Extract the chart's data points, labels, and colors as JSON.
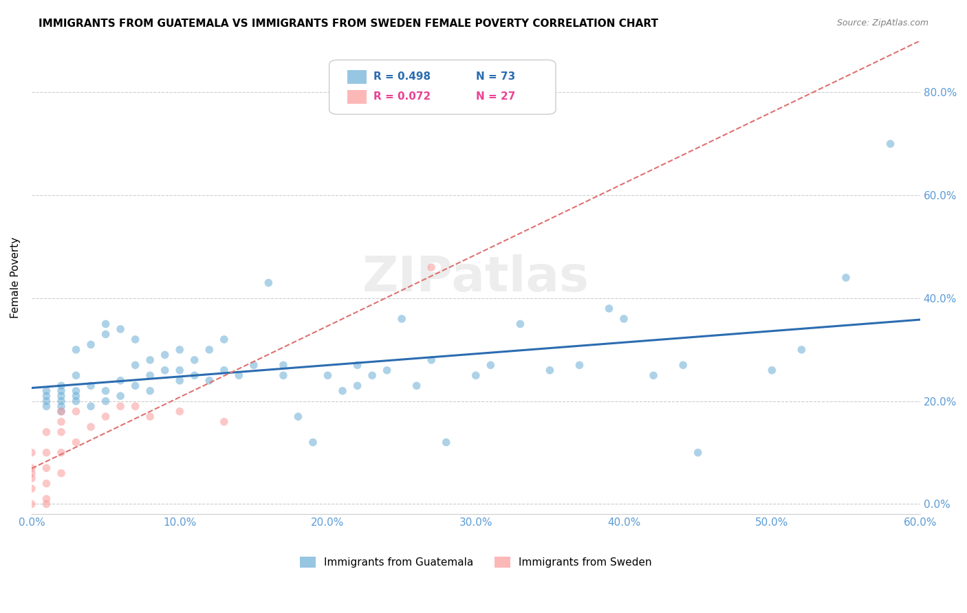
{
  "title": "IMMIGRANTS FROM GUATEMALA VS IMMIGRANTS FROM SWEDEN FEMALE POVERTY CORRELATION CHART",
  "source": "Source: ZipAtlas.com",
  "xlabel_ticks": [
    "0.0%",
    "10.0%",
    "20.0%",
    "30.0%",
    "40.0%",
    "50.0%",
    "60.0%"
  ],
  "ylabel_ticks": [
    "0.0%",
    "20.0%",
    "40.0%",
    "60.0%",
    "80.0%"
  ],
  "ylabel_label": "Female Poverty",
  "xlim": [
    0.0,
    0.6
  ],
  "ylim": [
    -0.02,
    0.9
  ],
  "guatemala_color": "#6baed6",
  "sweden_color": "#fb9a99",
  "watermark": "ZIPatlas",
  "guatemala_x": [
    0.01,
    0.01,
    0.01,
    0.01,
    0.02,
    0.02,
    0.02,
    0.02,
    0.02,
    0.02,
    0.03,
    0.03,
    0.03,
    0.03,
    0.03,
    0.04,
    0.04,
    0.04,
    0.05,
    0.05,
    0.05,
    0.05,
    0.06,
    0.06,
    0.06,
    0.07,
    0.07,
    0.07,
    0.08,
    0.08,
    0.08,
    0.09,
    0.09,
    0.1,
    0.1,
    0.1,
    0.11,
    0.11,
    0.12,
    0.12,
    0.13,
    0.13,
    0.14,
    0.15,
    0.16,
    0.17,
    0.17,
    0.18,
    0.19,
    0.2,
    0.21,
    0.22,
    0.22,
    0.23,
    0.24,
    0.25,
    0.26,
    0.27,
    0.28,
    0.3,
    0.31,
    0.33,
    0.35,
    0.37,
    0.39,
    0.4,
    0.42,
    0.44,
    0.45,
    0.5,
    0.52,
    0.55,
    0.58
  ],
  "guatemala_y": [
    0.19,
    0.2,
    0.21,
    0.22,
    0.18,
    0.19,
    0.2,
    0.21,
    0.22,
    0.23,
    0.2,
    0.21,
    0.22,
    0.25,
    0.3,
    0.19,
    0.23,
    0.31,
    0.2,
    0.22,
    0.33,
    0.35,
    0.21,
    0.24,
    0.34,
    0.23,
    0.27,
    0.32,
    0.22,
    0.25,
    0.28,
    0.26,
    0.29,
    0.24,
    0.26,
    0.3,
    0.25,
    0.28,
    0.24,
    0.3,
    0.26,
    0.32,
    0.25,
    0.27,
    0.43,
    0.25,
    0.27,
    0.17,
    0.12,
    0.25,
    0.22,
    0.23,
    0.27,
    0.25,
    0.26,
    0.36,
    0.23,
    0.28,
    0.12,
    0.25,
    0.27,
    0.35,
    0.26,
    0.27,
    0.38,
    0.36,
    0.25,
    0.27,
    0.1,
    0.26,
    0.3,
    0.44,
    0.7
  ],
  "sweden_x": [
    0.0,
    0.0,
    0.0,
    0.0,
    0.0,
    0.0,
    0.01,
    0.01,
    0.01,
    0.01,
    0.01,
    0.01,
    0.02,
    0.02,
    0.02,
    0.02,
    0.02,
    0.03,
    0.03,
    0.04,
    0.05,
    0.06,
    0.07,
    0.08,
    0.1,
    0.13,
    0.27
  ],
  "sweden_y": [
    0.0,
    0.03,
    0.05,
    0.06,
    0.07,
    0.1,
    0.0,
    0.01,
    0.04,
    0.07,
    0.1,
    0.14,
    0.06,
    0.1,
    0.14,
    0.16,
    0.18,
    0.12,
    0.18,
    0.15,
    0.17,
    0.19,
    0.19,
    0.17,
    0.18,
    0.16,
    0.46
  ],
  "grid_color": "#cccccc",
  "bg_color": "#ffffff",
  "blue_line_color": "#2b6cb0",
  "pink_line_color": "#e07070",
  "right_tick_color": "#5b9bd5",
  "title_fontsize": 11,
  "source_fontsize": 9
}
